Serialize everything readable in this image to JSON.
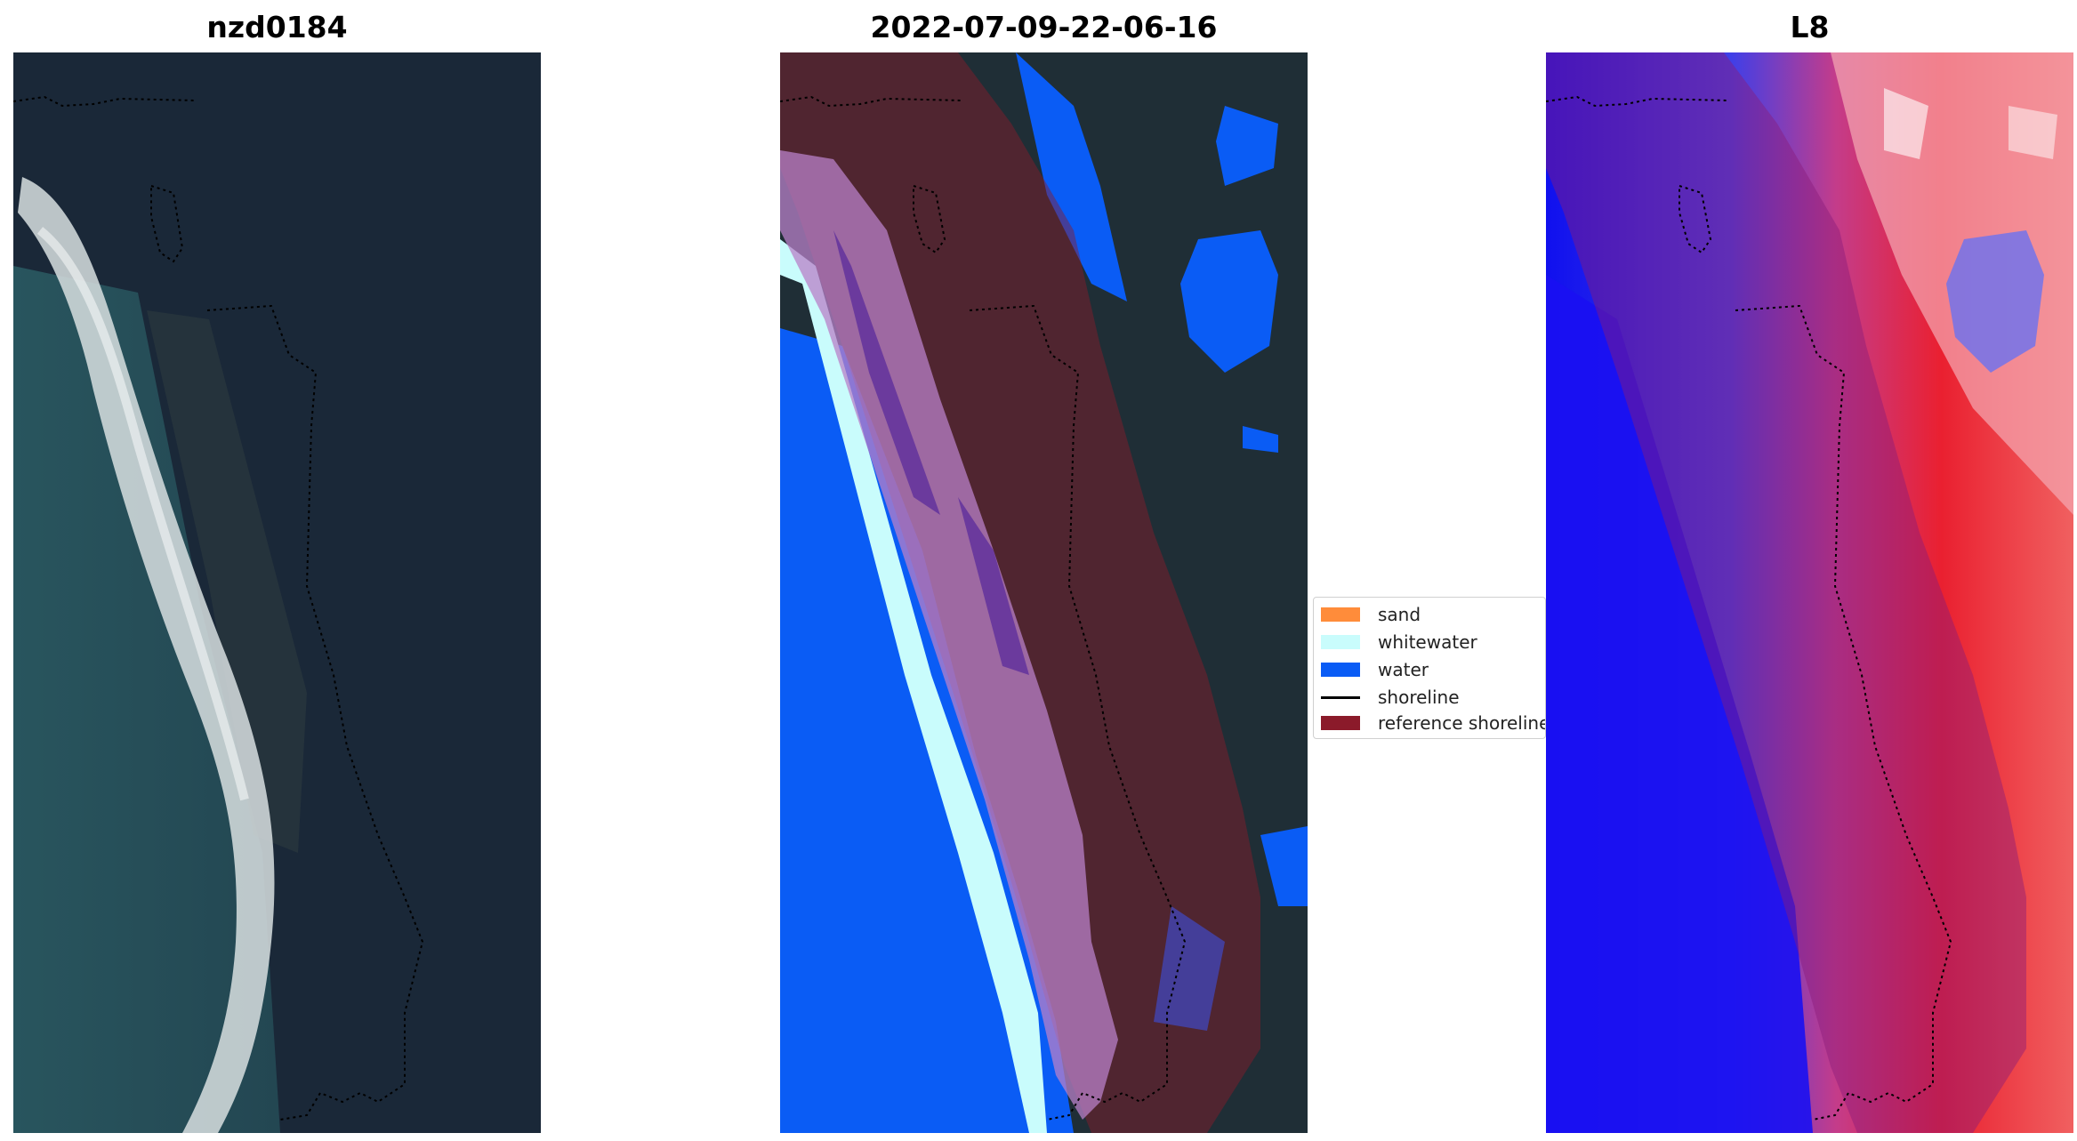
{
  "panels": {
    "left": {
      "title": "nzd0184"
    },
    "middle": {
      "title": "2022-07-09-22-06-16"
    },
    "right": {
      "title": "L8"
    }
  },
  "legend": {
    "items": [
      {
        "label": "sand",
        "color": "#ff8c3a"
      },
      {
        "label": "whitewater",
        "color": "#c9fcfc"
      },
      {
        "label": "water",
        "color": "#0a5cf5"
      },
      {
        "label": "shoreline",
        "color": "#000000"
      },
      {
        "label": "reference shoreline",
        "color": "#8b1a2a"
      }
    ]
  }
}
